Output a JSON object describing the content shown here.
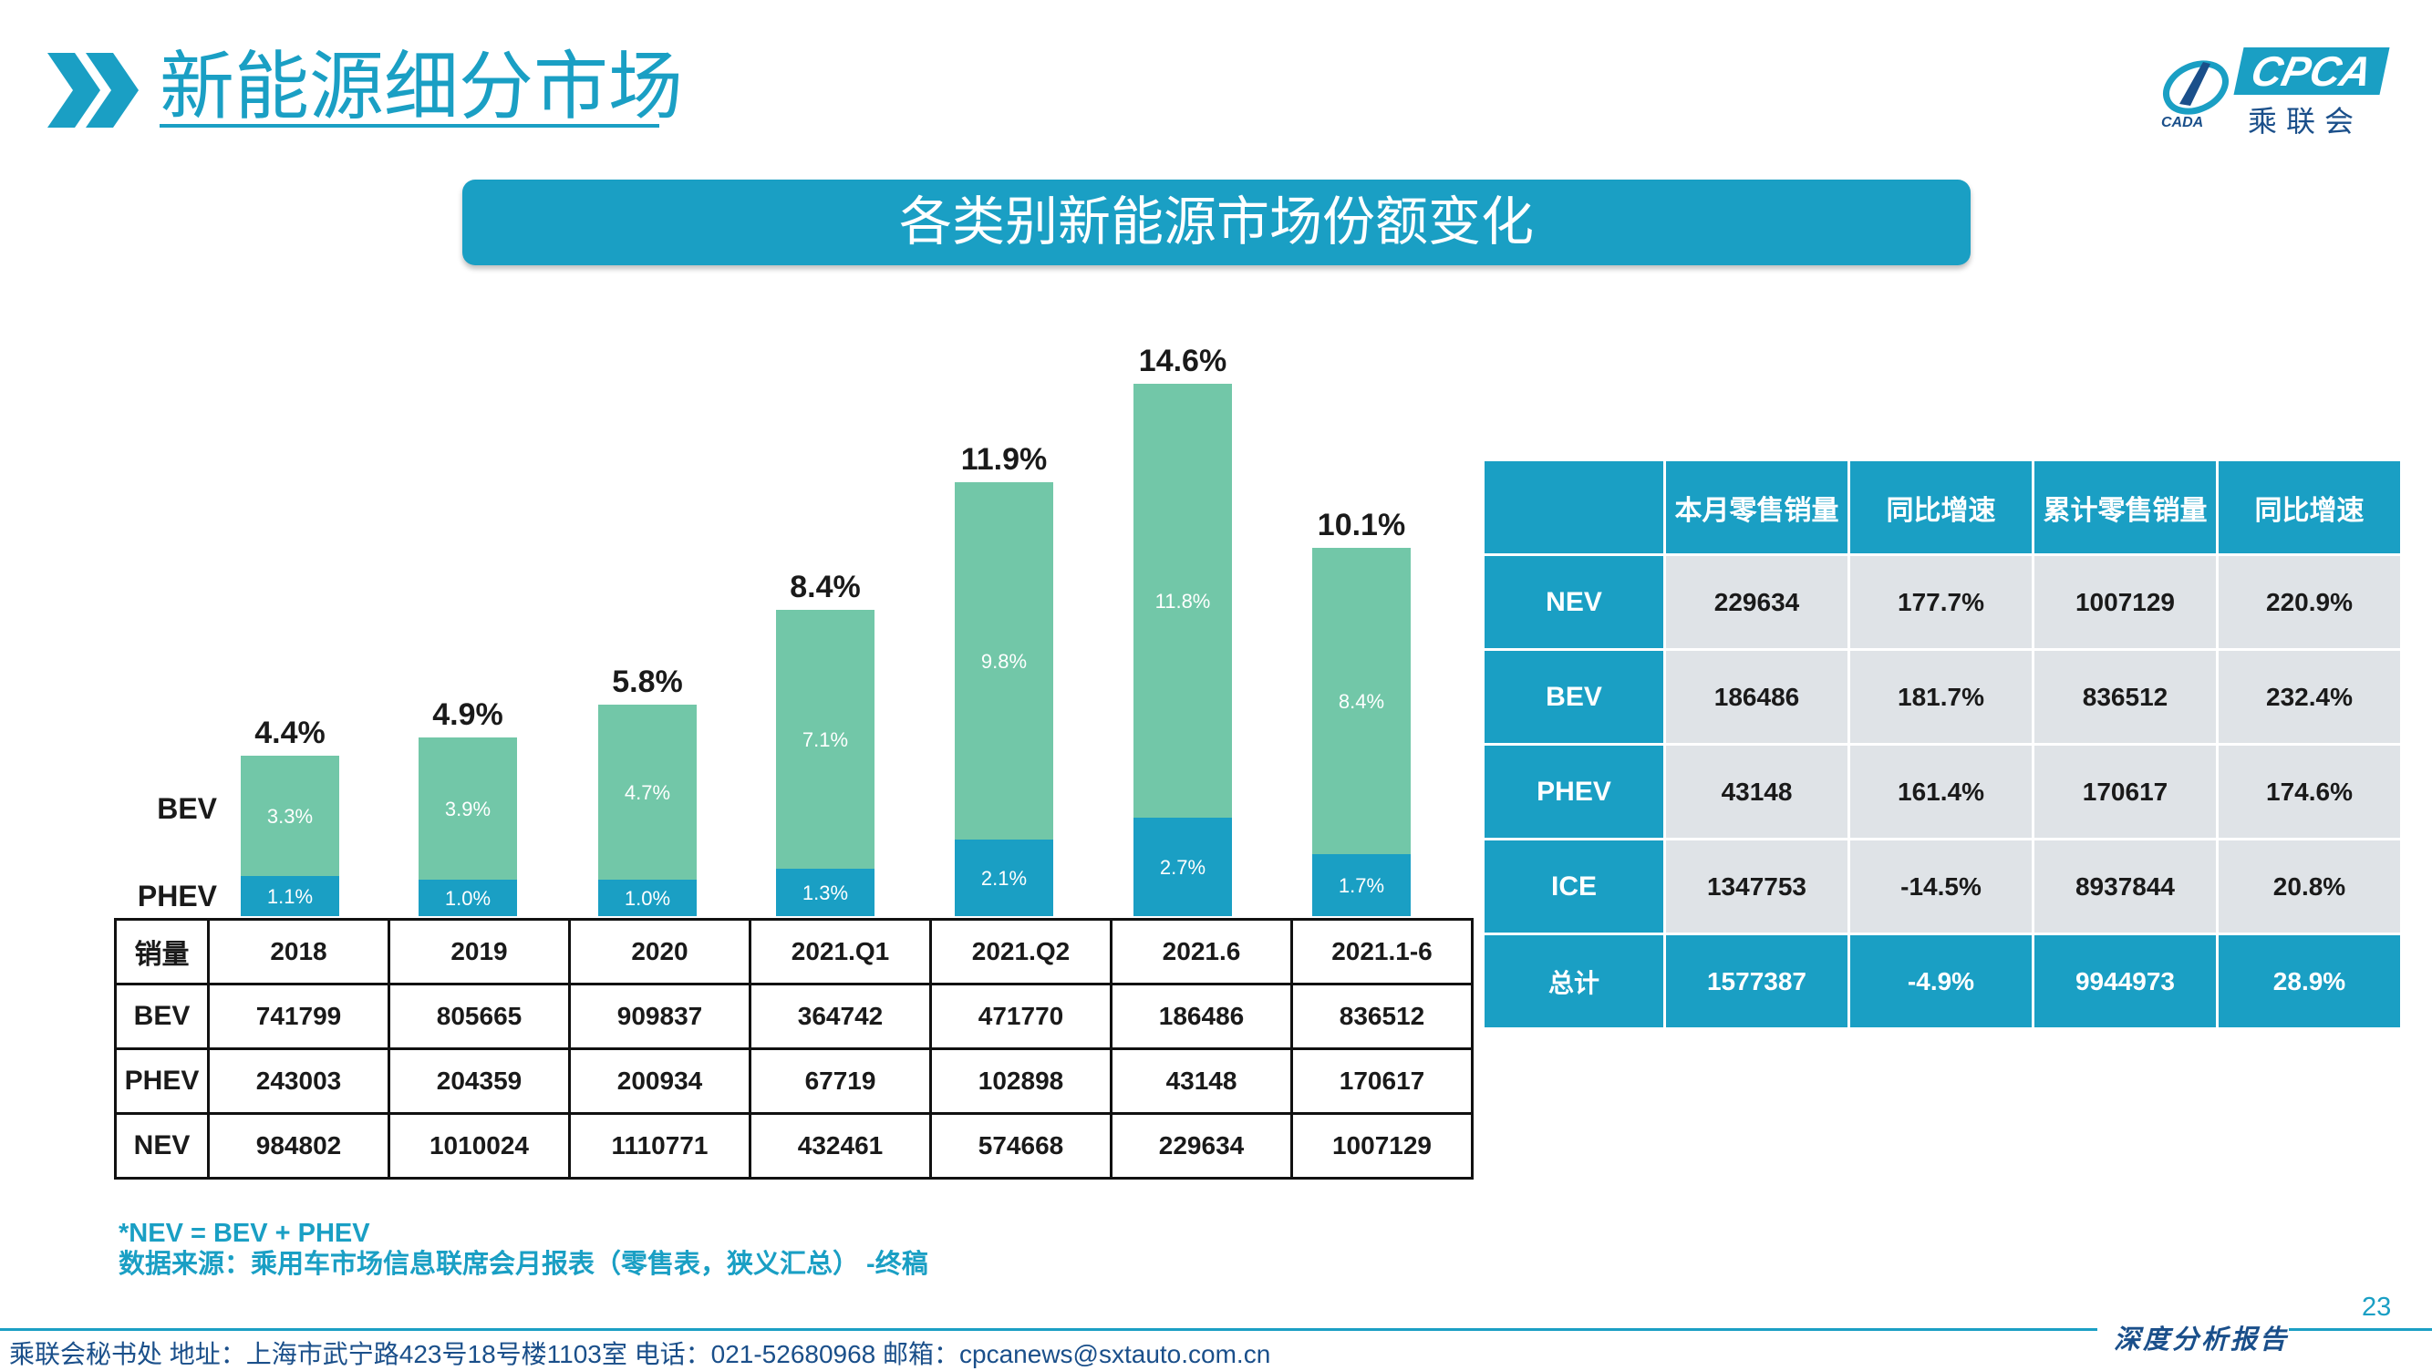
{
  "header": {
    "title": "新能源细分市场",
    "logo_text": "CPCA",
    "logo_cn": "乘联会",
    "logo_small": "CADA"
  },
  "banner": {
    "title": "各类别新能源市场份额变化"
  },
  "colors": {
    "accent": "#1a9fc4",
    "bev": "#72c7a8",
    "phev": "#1a9fc4",
    "cell": "#dfe3e7"
  },
  "chart_data": {
    "type": "bar",
    "stacked": true,
    "categories": [
      "2018",
      "2019",
      "2020",
      "2021.Q1",
      "2021.Q2",
      "2021.6",
      "2021.1-6"
    ],
    "series": [
      {
        "name": "PHEV",
        "values": [
          1.1,
          1.0,
          1.0,
          1.3,
          2.1,
          2.7,
          1.7
        ],
        "labels": [
          "1.1%",
          "1.0%",
          "1.0%",
          "1.3%",
          "2.1%",
          "2.7%",
          "1.7%"
        ]
      },
      {
        "name": "BEV",
        "values": [
          3.3,
          3.9,
          4.7,
          7.1,
          9.8,
          11.8,
          8.4
        ],
        "labels": [
          "3.3%",
          "3.9%",
          "4.7%",
          "7.1%",
          "9.8%",
          "11.8%",
          "8.4%"
        ]
      }
    ],
    "totals": [
      4.4,
      4.9,
      5.8,
      8.4,
      11.9,
      14.6,
      10.1
    ],
    "total_labels": [
      "4.4%",
      "4.9%",
      "5.8%",
      "8.4%",
      "11.9%",
      "14.6%",
      "10.1%"
    ],
    "unit": "%",
    "legend": "left"
  },
  "volume_table": {
    "header": [
      "销量",
      "2018",
      "2019",
      "2020",
      "2021.Q1",
      "2021.Q2",
      "2021.6",
      "2021.1-6"
    ],
    "rows": [
      [
        "BEV",
        "741799",
        "805665",
        "909837",
        "364742",
        "471770",
        "186486",
        "836512"
      ],
      [
        "PHEV",
        "243003",
        "204359",
        "200934",
        "67719",
        "102898",
        "43148",
        "170617"
      ],
      [
        "NEV",
        "984802",
        "1010024",
        "1110771",
        "432461",
        "574668",
        "229634",
        "1007129"
      ]
    ]
  },
  "sales_table": {
    "header": [
      "",
      "本月零售销量",
      "同比增速",
      "累计零售销量",
      "同比增速"
    ],
    "rows": [
      [
        "NEV",
        "229634",
        "177.7%",
        "1007129",
        "220.9%"
      ],
      [
        "BEV",
        "186486",
        "181.7%",
        "836512",
        "232.4%"
      ],
      [
        "PHEV",
        "43148",
        "161.4%",
        "170617",
        "174.6%"
      ],
      [
        "ICE",
        "1347753",
        "-14.5%",
        "8937844",
        "20.8%"
      ]
    ],
    "total": [
      "总计",
      "1577387",
      "-4.9%",
      "9944973",
      "28.9%"
    ]
  },
  "notes": {
    "line1": "*NEV = BEV + PHEV",
    "line2": "数据来源：乘用车市场信息联席会月报表（零售表，狭义汇总） -终稿"
  },
  "footer": {
    "text": "乘联会秘书处   地址：上海市武宁路423号18号楼1103室   电话：021-52680968   邮箱：cpcanews@sxtauto.com.cn",
    "tag": "深度分析报告",
    "page": "23"
  }
}
